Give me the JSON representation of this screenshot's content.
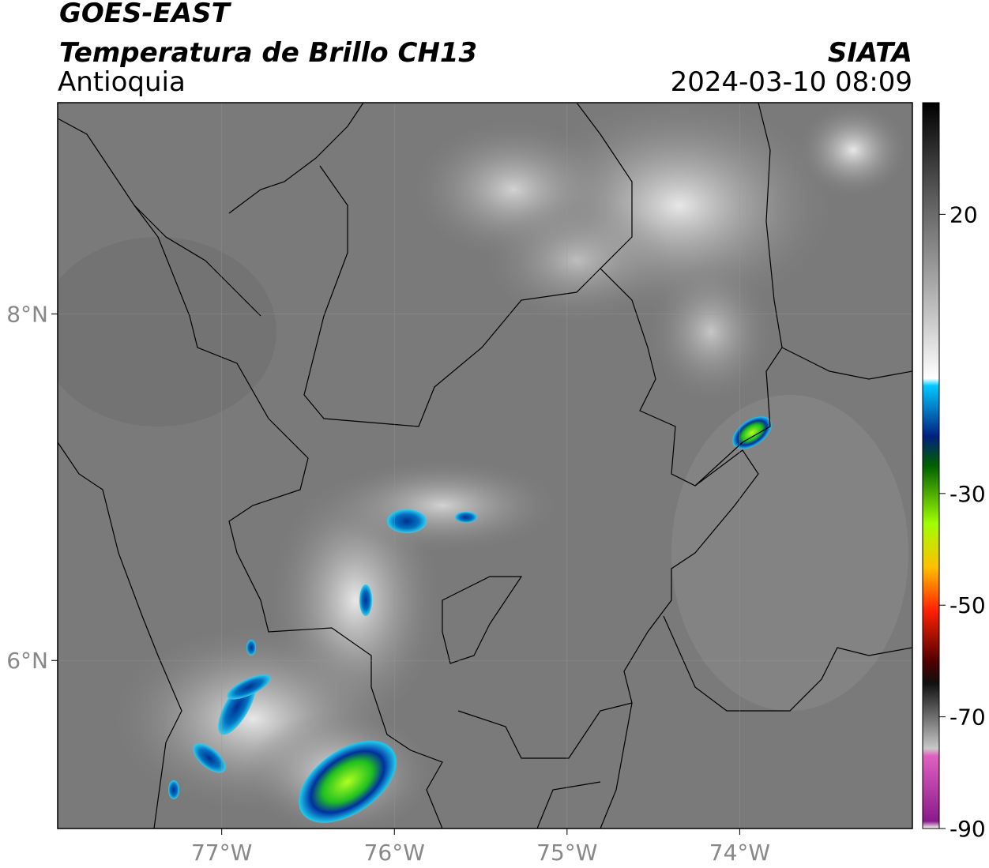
{
  "header": {
    "title": "GOES-EAST",
    "subtitle": "Temperatura de Brillo CH13",
    "region": "Antioquia",
    "source": "SIATA",
    "datetime": "2024-03-10 08:09"
  },
  "map": {
    "xlim": [
      -77.95,
      -73
    ],
    "ylim": [
      5.03,
      9.22
    ],
    "xticks": [
      {
        "value": -77,
        "label": "77°W"
      },
      {
        "value": -76,
        "label": "76°W"
      },
      {
        "value": -75,
        "label": "75°W"
      },
      {
        "value": -74,
        "label": "74°W"
      }
    ],
    "yticks": [
      {
        "value": 8,
        "label": "8°N"
      },
      {
        "value": 6,
        "label": "6°N"
      }
    ]
  },
  "colorbar": {
    "lim": [
      -90,
      40
    ],
    "ticks": [
      20,
      -30,
      -50,
      -70,
      -90
    ]
  }
}
